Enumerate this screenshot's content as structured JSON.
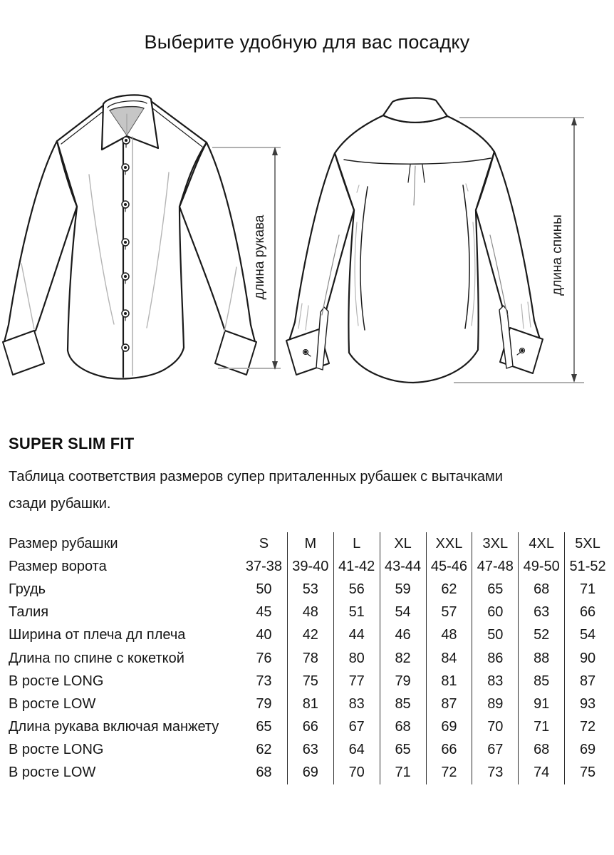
{
  "page": {
    "title": "Выберите удобную для вас посадку"
  },
  "diagram": {
    "sleeve_length_label": "длина рукава",
    "back_length_label": "длина спины"
  },
  "section": {
    "heading": "SUPER SLIM FIT",
    "description_lines": [
      "Таблица соответствия размеров супер приталенных рубашек с вытачками",
      "сзади рубашки."
    ]
  },
  "size_table": {
    "rows": [
      {
        "label": "Размер рубашки",
        "values": [
          "S",
          "M",
          "L",
          "XL",
          "XXL",
          "3XL",
          "4XL",
          "5XL"
        ]
      },
      {
        "label": "Размер ворота",
        "values": [
          "37-38",
          "39-40",
          "41-42",
          "43-44",
          "45-46",
          "47-48",
          "49-50",
          "51-52"
        ]
      },
      {
        "label": "Грудь",
        "values": [
          "50",
          "53",
          "56",
          "59",
          "62",
          "65",
          "68",
          "71"
        ]
      },
      {
        "label": "Талия",
        "values": [
          "45",
          "48",
          "51",
          "54",
          "57",
          "60",
          "63",
          "66"
        ]
      },
      {
        "label": "Ширина от плеча дл плеча",
        "values": [
          "40",
          "42",
          "44",
          "46",
          "48",
          "50",
          "52",
          "54"
        ]
      },
      {
        "label": "Длина по спине с кокеткой",
        "values": [
          "76",
          "78",
          "80",
          "82",
          "84",
          "86",
          "88",
          "90"
        ]
      },
      {
        "label": "В росте LONG",
        "values": [
          "73",
          "75",
          "77",
          "79",
          "81",
          "83",
          "85",
          "87"
        ]
      },
      {
        "label": "В росте LOW",
        "values": [
          "79",
          "81",
          "83",
          "85",
          "87",
          "89",
          "91",
          "93"
        ]
      },
      {
        "label": "Длина рукава включая манжету",
        "values": [
          "65",
          "66",
          "67",
          "68",
          "69",
          "70",
          "71",
          "72"
        ]
      },
      {
        "label": "В росте LONG",
        "values": [
          "62",
          "63",
          "64",
          "65",
          "66",
          "67",
          "68",
          "69"
        ]
      },
      {
        "label": "В росте LOW",
        "values": [
          "68",
          "69",
          "70",
          "71",
          "72",
          "73",
          "74",
          "75"
        ]
      }
    ]
  },
  "colors": {
    "ink": "#1c1c1c",
    "dimension_line": "#3c3c3c",
    "tick_gray": "#b0b0b0",
    "collar_shade": "#c6c6c6"
  }
}
